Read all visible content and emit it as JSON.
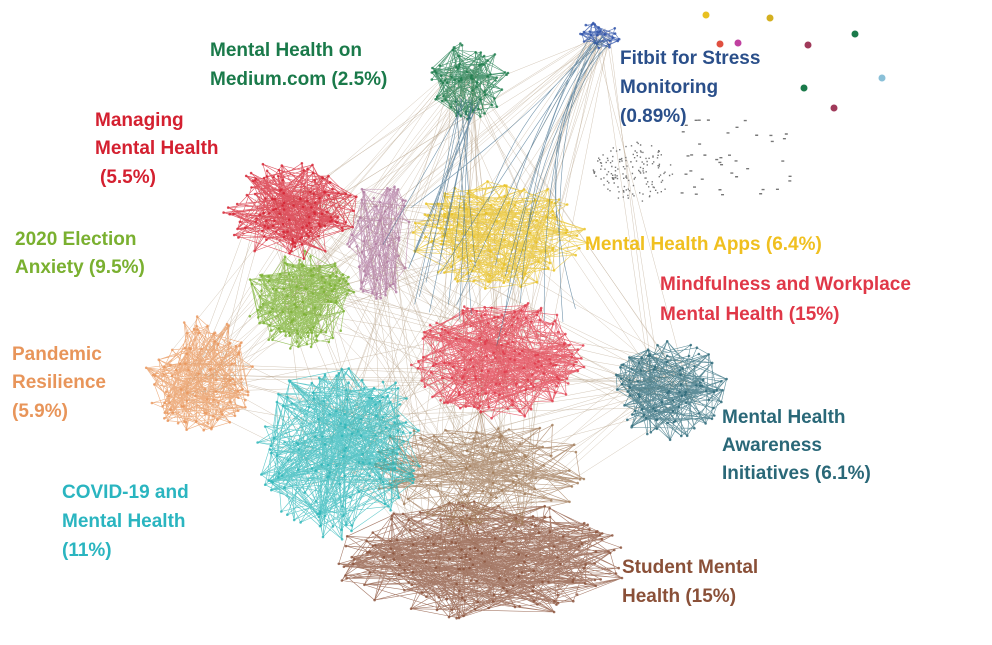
{
  "labels": [
    {
      "lines": [
        "Mental Health on",
        "Medium.com (2.5%)"
      ]
    },
    {
      "lines": [
        "Fitbit for Stress",
        "Monitoring",
        "(0.89%)"
      ]
    },
    {
      "lines": [
        "Managing",
        "Mental Health",
        "(5.5%)"
      ]
    },
    {
      "lines": [
        "2020 Election",
        "Anxiety (9.5%)"
      ]
    },
    {
      "lines": [
        "Pandemic",
        "Resilience",
        "(5.9%)"
      ]
    },
    {
      "lines": [
        "COVID-19 and",
        "Mental Health",
        "(11%)"
      ]
    },
    {
      "lines": [
        "Mental Health Apps (6.4%)"
      ]
    },
    {
      "lines": [
        "Mindfulness and Workplace",
        "Mental Health (15%)"
      ]
    },
    {
      "lines": [
        "Mental Health",
        "Awareness",
        "Initiatives (6.1%)"
      ]
    },
    {
      "lines": [
        "Student Mental",
        "Health (15%)"
      ]
    }
  ]
}
